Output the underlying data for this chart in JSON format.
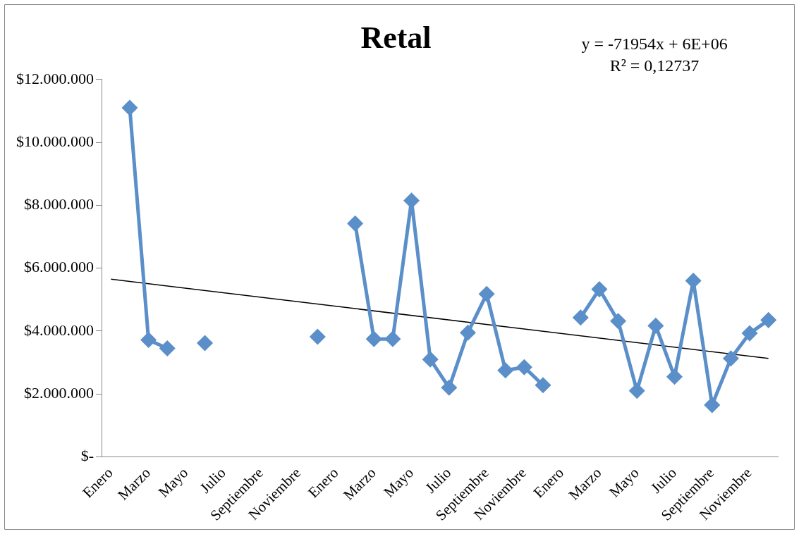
{
  "chart_data": {
    "type": "line",
    "title": "Retal",
    "categories": [
      "Enero",
      null,
      "Marzo",
      null,
      "Mayo",
      null,
      "Julio",
      null,
      "Septiembre",
      null,
      "Noviembre",
      null,
      "Enero",
      null,
      "Marzo",
      null,
      "Mayo",
      null,
      "Julio",
      null,
      "Septiembre",
      null,
      "Noviembre",
      null,
      "Enero",
      null,
      "Marzo",
      null,
      "Mayo",
      null,
      "Julio",
      null,
      "Septiembre",
      null,
      "Noviembre",
      null
    ],
    "series": [
      {
        "type": "line",
        "color": "#5b8fc9",
        "values": [
          null,
          11100000,
          3720000,
          3450000,
          null,
          3620000,
          null,
          null,
          null,
          null,
          null,
          3820000,
          null,
          7420000,
          3750000,
          3750000,
          8150000,
          3100000,
          2200000,
          3950000,
          5180000,
          2750000,
          2850000,
          2280000,
          null,
          4430000,
          5330000,
          4320000,
          2100000,
          4170000,
          2550000,
          5600000,
          1650000,
          3130000,
          3930000,
          4350000
        ]
      },
      {
        "type": "line",
        "color": "#000000",
        "marker": "none",
        "values": [
          5650000,
          null,
          null,
          null,
          null,
          null,
          null,
          null,
          null,
          null,
          null,
          null,
          null,
          null,
          null,
          null,
          null,
          null,
          null,
          null,
          null,
          null,
          null,
          null,
          null,
          null,
          null,
          null,
          null,
          null,
          null,
          null,
          null,
          null,
          null,
          3130000
        ]
      }
    ],
    "ylim": [
      0,
      12000000
    ],
    "yticks": [
      {
        "value": 0,
        "label": "$-"
      },
      {
        "value": 2000000,
        "label": "$2.000.000"
      },
      {
        "value": 4000000,
        "label": "$4.000.000"
      },
      {
        "value": 6000000,
        "label": "$6.000.000"
      },
      {
        "value": 8000000,
        "label": "$8.000.000"
      },
      {
        "value": 10000000,
        "label": "$10.000.000"
      },
      {
        "value": 12000000,
        "label": "$12.000.000"
      }
    ],
    "grid": false,
    "legend": false,
    "marker": "diamond",
    "annotations": [
      "y = -71954x + 6E+06",
      "R² = 0,12737"
    ]
  }
}
